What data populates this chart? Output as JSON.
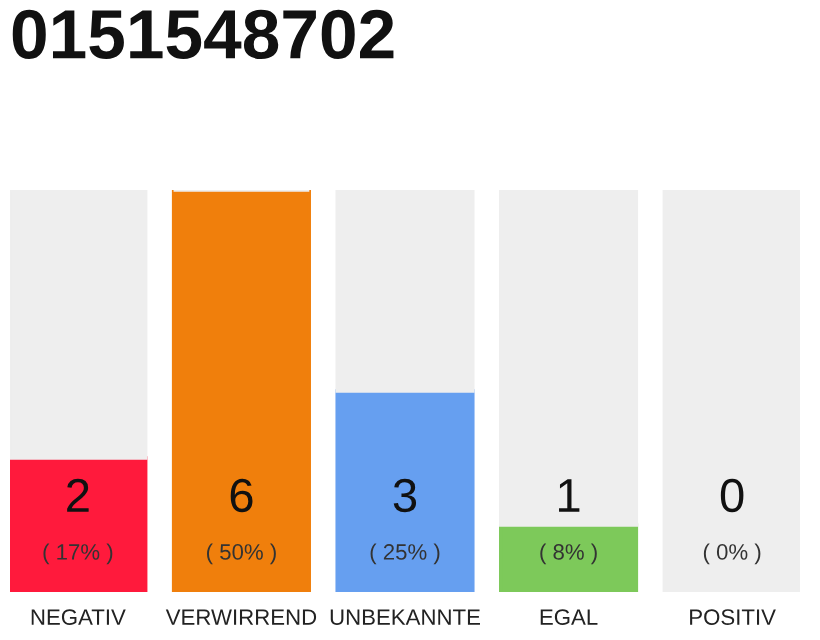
{
  "chart_data": {
    "type": "bar",
    "title": "0151548702",
    "stacked": true,
    "categories": [
      "NEGATIV",
      "VERWIRREND",
      "UNBEKANNTE",
      "EGAL",
      "POSITIV"
    ],
    "series": [
      {
        "colors": [
          "#ff1a3c",
          "#f07f0c",
          "#669ff0",
          "#7dc95a",
          "#22aa44"
        ],
        "values": [
          2,
          6,
          3,
          1,
          0
        ],
        "value_labels": [
          "2\n( 17% )",
          "6\n( 50% )",
          "3\n( 25% )",
          "1\n( 8% )",
          "0\n( 0% )"
        ]
      },
      {
        "color": "#eeeeee",
        "values": [
          4,
          0,
          3,
          5,
          6
        ]
      }
    ],
    "grid": false,
    "legend": false
  }
}
